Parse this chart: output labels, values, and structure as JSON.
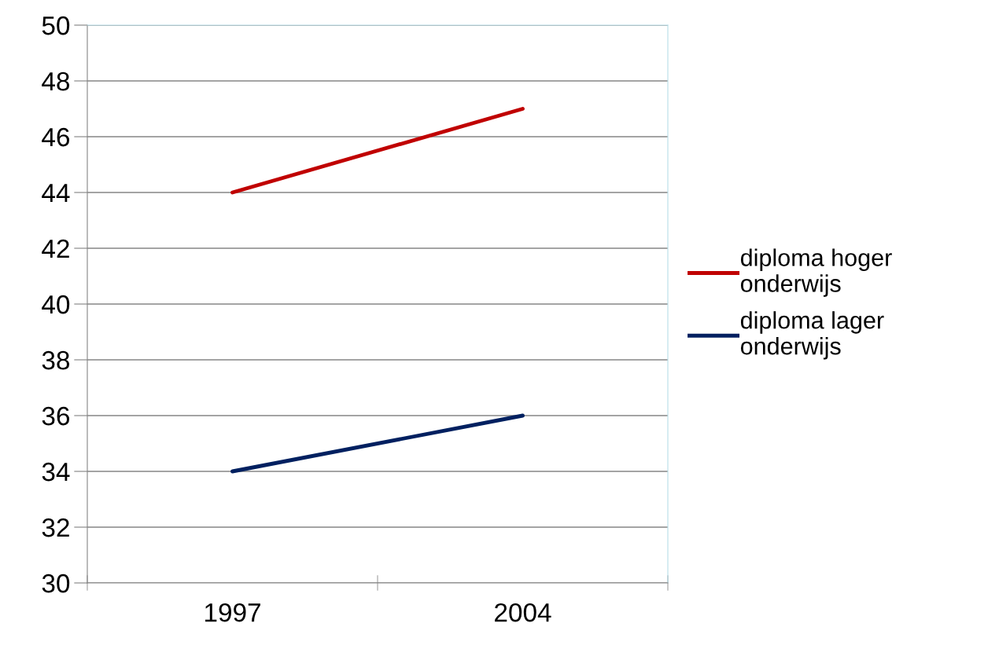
{
  "chart_data": {
    "type": "line",
    "categories": [
      "1997",
      "2004"
    ],
    "series": [
      {
        "name": "diploma hoger onderwijs",
        "color": "#c00000",
        "values": [
          44,
          47
        ]
      },
      {
        "name": "diploma lager onderwijs",
        "color": "#002060",
        "values": [
          34,
          36
        ]
      }
    ],
    "ylim": [
      30,
      50
    ],
    "yticks": [
      30,
      32,
      34,
      36,
      38,
      40,
      42,
      44,
      46,
      48,
      50
    ],
    "grid": "y",
    "legend": "right",
    "marker": "none",
    "line_style": "solid"
  }
}
